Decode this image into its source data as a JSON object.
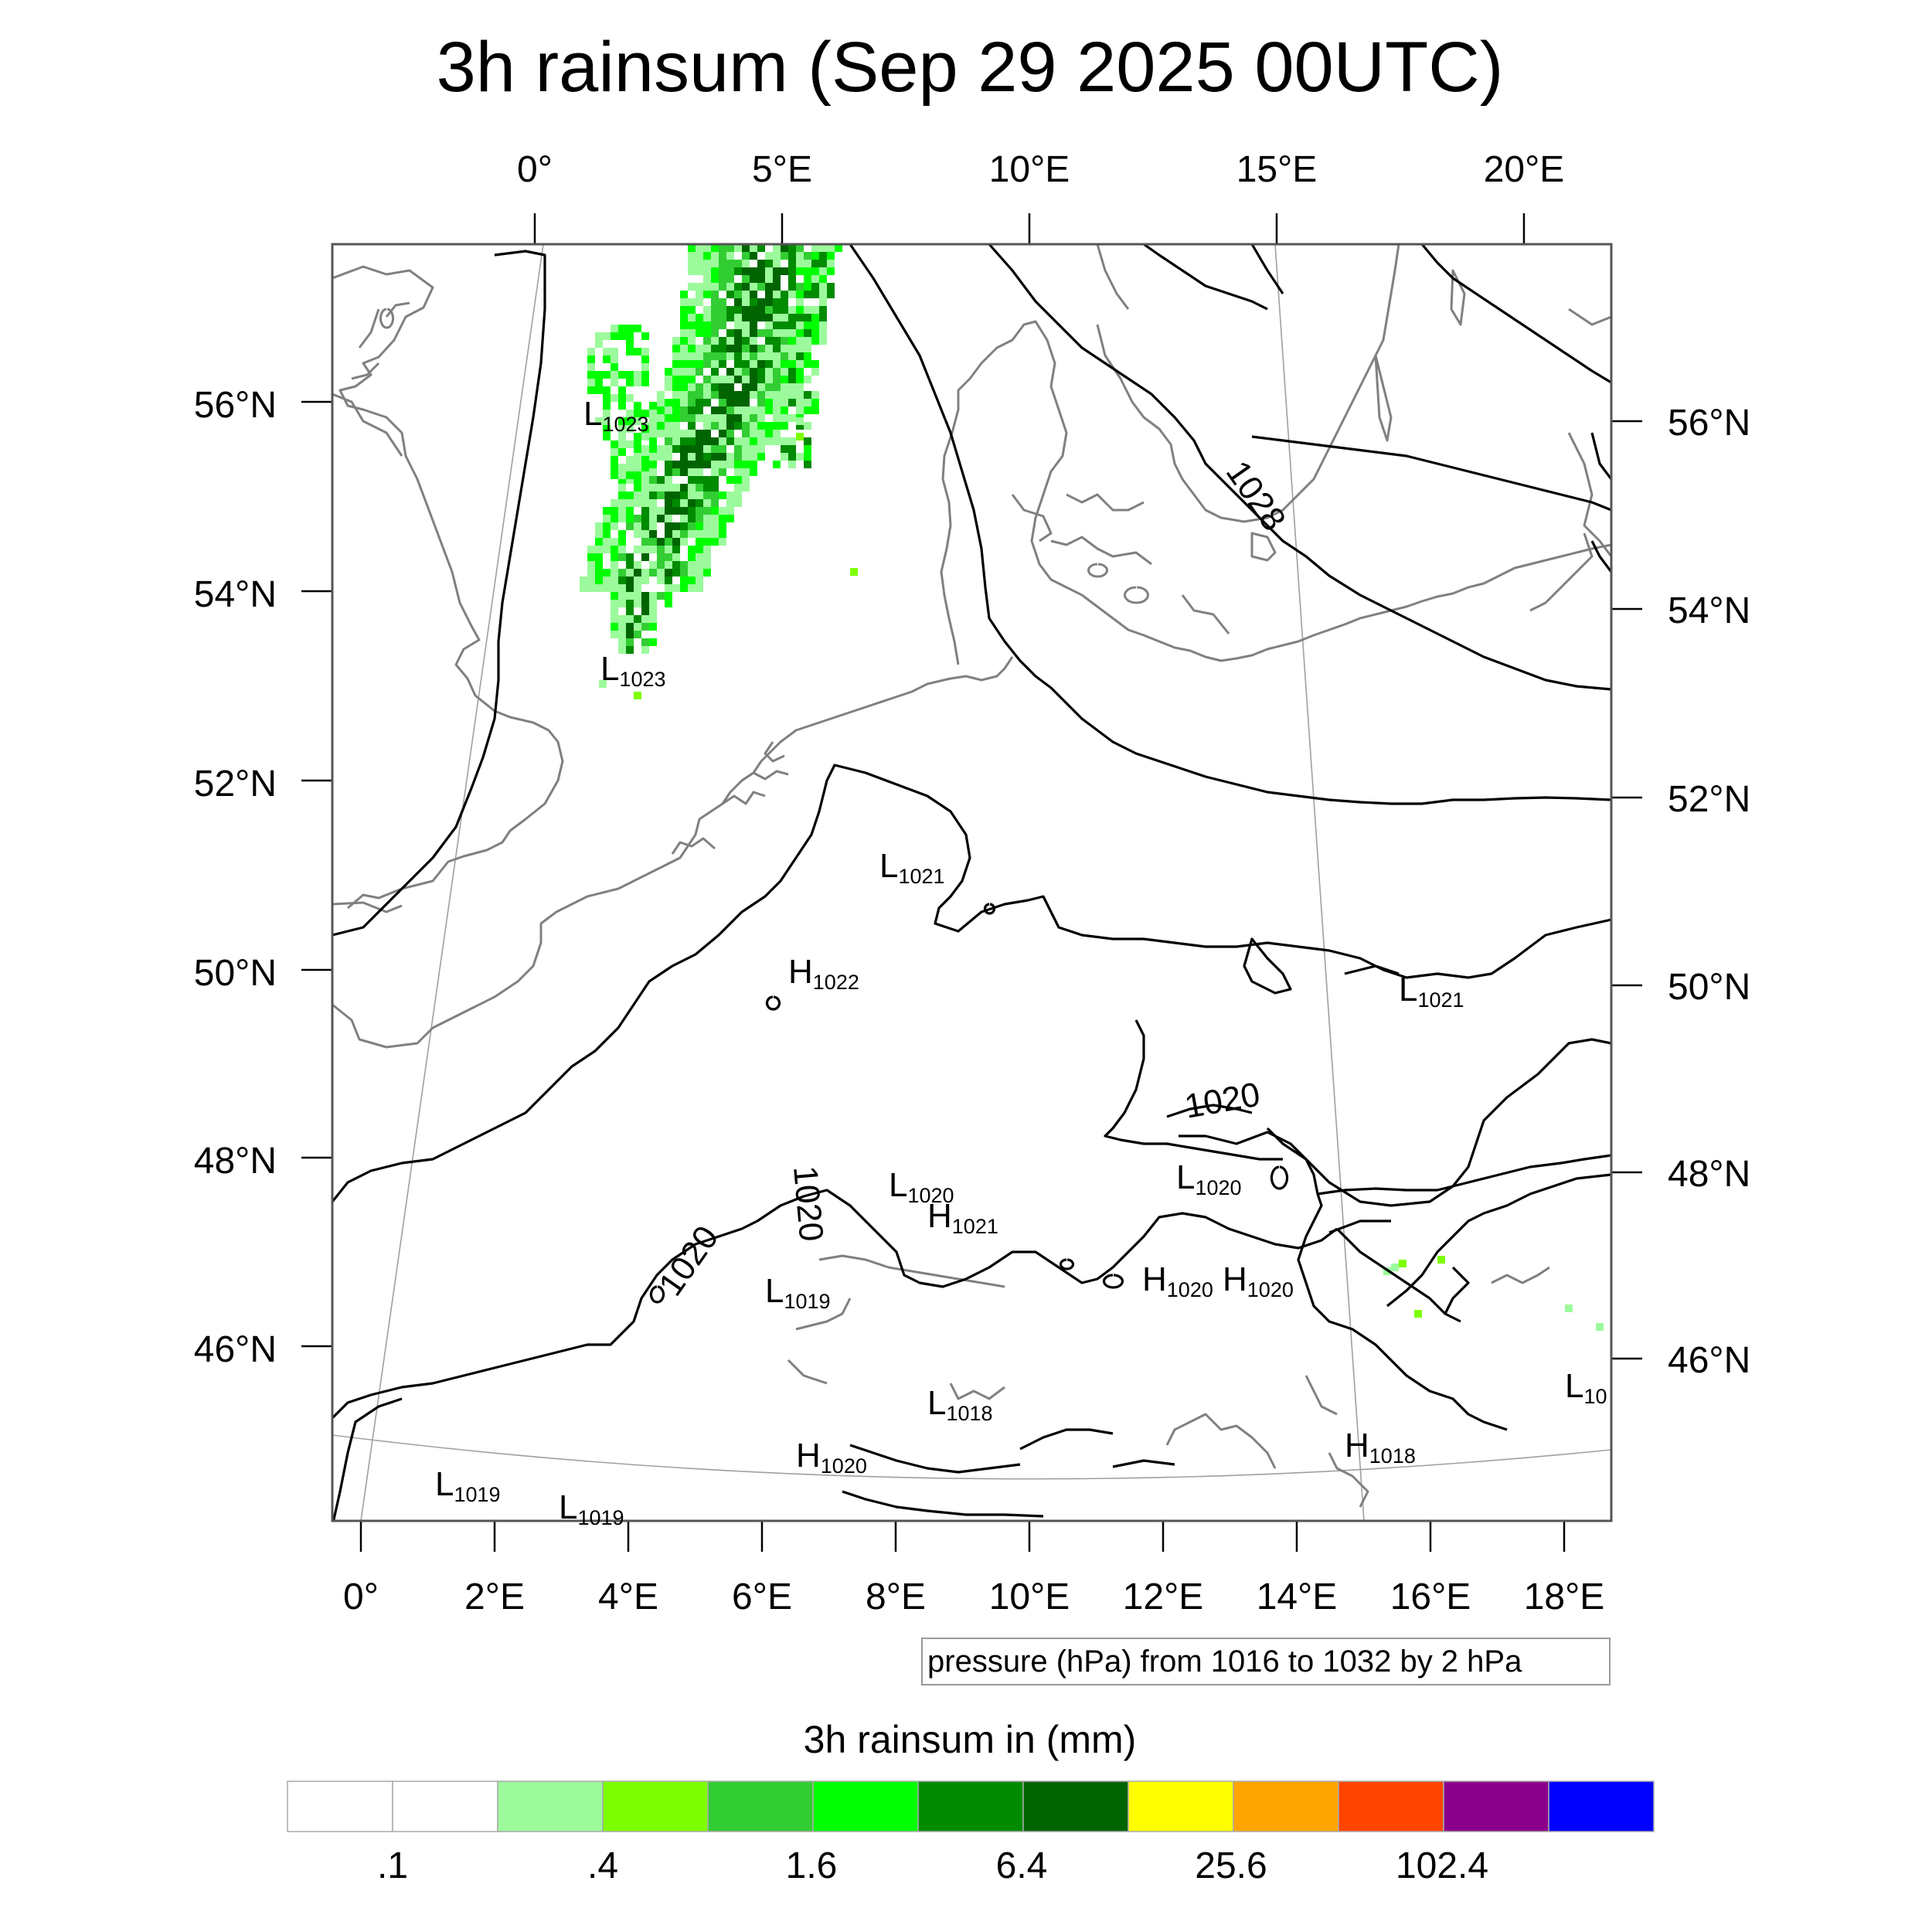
{
  "title": "3h rainsum (Sep 29 2025 00UTC)",
  "top_axis": [
    "0°",
    "5°E",
    "10°E",
    "15°E",
    "20°E"
  ],
  "bottom_axis": [
    "0°",
    "2°E",
    "4°E",
    "6°E",
    "8°E",
    "10°E",
    "12°E",
    "14°E",
    "16°E",
    "18°E"
  ],
  "left_axis": [
    "56°N",
    "54°N",
    "52°N",
    "50°N",
    "48°N",
    "46°N"
  ],
  "right_axis": [
    "56°N",
    "54°N",
    "52°N",
    "50°N",
    "48°N",
    "46°N"
  ],
  "contour_info": "pressure (hPa) from 1016 to 1032 by 2 hPa",
  "contour_labels": [
    "1028",
    "1020",
    "1020",
    "1020"
  ],
  "pressure_centers": [
    {
      "type": "L",
      "value": "1023"
    },
    {
      "type": "L",
      "value": "1023"
    },
    {
      "type": "L",
      "value": "1021"
    },
    {
      "type": "H",
      "value": "1022"
    },
    {
      "type": "L",
      "value": "1021"
    },
    {
      "type": "L",
      "value": "1020"
    },
    {
      "type": "H",
      "value": "1021"
    },
    {
      "type": "L",
      "value": "1020"
    },
    {
      "type": "L",
      "value": "1019"
    },
    {
      "type": "H",
      "value": "1020"
    },
    {
      "type": "H",
      "value": "1020"
    },
    {
      "type": "L",
      "value": "1018"
    },
    {
      "type": "H",
      "value": "1020"
    },
    {
      "type": "H",
      "value": "1018"
    },
    {
      "type": "L",
      "value": "10"
    },
    {
      "type": "L",
      "value": "1019"
    },
    {
      "type": "L",
      "value": "1019"
    }
  ],
  "colorbar": {
    "title": "3h rainsum in (mm)",
    "colors": [
      "#ffffff",
      "#ffffff",
      "#9cfa9c",
      "#7dff00",
      "#32cd32",
      "#00ff00",
      "#008b00",
      "#006400",
      "#ffff00",
      "#ffa500",
      "#ff4500",
      "#8b008b",
      "#0000ff"
    ],
    "tick_labels": [
      ".1",
      ".4",
      "1.6",
      "6.4",
      "25.6",
      "102.4"
    ]
  },
  "rain_colors": {
    "light": "#9cfa9c",
    "medium": "#32cd32",
    "bright": "#00ff00",
    "dark": "#008b00",
    "darkest": "#006400",
    "lime": "#7dff00"
  }
}
